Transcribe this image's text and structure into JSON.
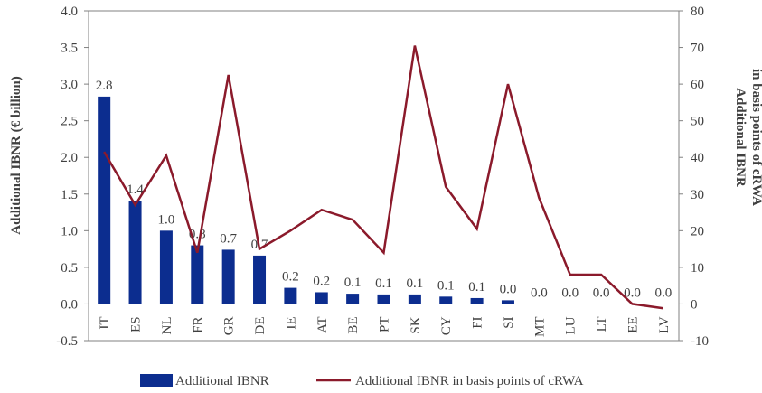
{
  "chart_data": {
    "type": "bar+line",
    "categories": [
      "IT",
      "ES",
      "NL",
      "FR",
      "GR",
      "DE",
      "IE",
      "AT",
      "BE",
      "PT",
      "SK",
      "CY",
      "FI",
      "SI",
      "MT",
      "LU",
      "LT",
      "EE",
      "LV"
    ],
    "series": [
      {
        "name": "Additional  IBNR",
        "type": "bar",
        "axis": "left",
        "color": "#0c2d8f",
        "values": [
          2.83,
          1.41,
          1.0,
          0.8,
          0.74,
          0.66,
          0.22,
          0.16,
          0.14,
          0.13,
          0.13,
          0.1,
          0.08,
          0.05,
          0.0,
          0.0,
          0.0,
          0.0,
          0.0
        ],
        "labels": [
          "2.8",
          "1.4",
          "1.0",
          "0.8",
          "0.7",
          "0.7",
          "0.2",
          "0.2",
          "0.1",
          "0.1",
          "0.1",
          "0.1",
          "0.1",
          "0.0",
          "0.0",
          "0.0",
          "0.0",
          "0.0",
          "0.0"
        ]
      },
      {
        "name": "Additional IBNR in basis points of cRWA",
        "type": "line",
        "axis": "right",
        "color": "#8b1a2b",
        "values": [
          41.5,
          27,
          40.5,
          14,
          62.5,
          15,
          20,
          25.7,
          23,
          14,
          70.5,
          32,
          20.5,
          60,
          29,
          8,
          8,
          0,
          -1.2
        ]
      }
    ],
    "ylabel": "Additional IBNR (€ billion)",
    "y2label": [
      "Additional IBNR",
      "in basis points of cRWA"
    ],
    "ylim": [
      -0.5,
      4.0
    ],
    "y_ticks": [
      "-0.5",
      "0.0",
      "0.5",
      "1.0",
      "1.5",
      "2.0",
      "2.5",
      "3.0",
      "3.5",
      "4.0"
    ],
    "y2lim": [
      -10,
      80
    ],
    "y2_ticks": [
      "-10",
      "0",
      "10",
      "20",
      "30",
      "40",
      "50",
      "60",
      "70",
      "80"
    ],
    "grid": false,
    "legend_position": "bottom"
  }
}
